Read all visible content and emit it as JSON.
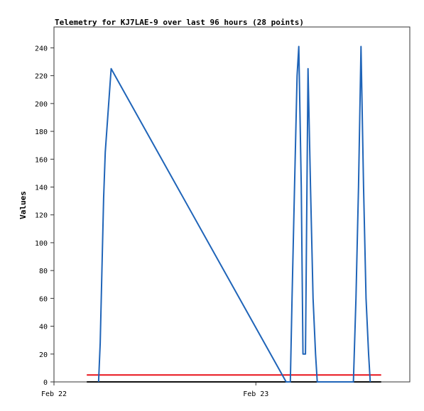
{
  "chart_data": {
    "type": "line",
    "title": "Telemetry for KJ7LAE-9 over last 96 hours (28 points)",
    "xlabel": "",
    "ylabel": "Values",
    "x_ticks": [
      "Feb 22",
      "Feb 23"
    ],
    "x_tick_hours": [
      0,
      24
    ],
    "xlim_hours": [
      0,
      42.3
    ],
    "ylim": [
      0,
      255
    ],
    "y_ticks": [
      0,
      20,
      40,
      60,
      80,
      100,
      120,
      140,
      160,
      180,
      200,
      220,
      240
    ],
    "grid": false,
    "legend": "none",
    "colors": {
      "series_blue": "#1f64b8",
      "series_red": "#e8131b",
      "series_black": "#111111",
      "frame": "#333333"
    },
    "series": [
      {
        "color": "#1f64b8",
        "points": [
          [
            5.3,
            0
          ],
          [
            5.5,
            28
          ],
          [
            5.7,
            80
          ],
          [
            5.9,
            132
          ],
          [
            6.1,
            165
          ],
          [
            6.8,
            225
          ],
          [
            27.6,
            0
          ],
          [
            28.1,
            0
          ],
          [
            28.3,
            60
          ],
          [
            28.6,
            140
          ],
          [
            28.9,
            220
          ],
          [
            29.1,
            241
          ],
          [
            29.4,
            140
          ],
          [
            29.6,
            20
          ],
          [
            29.9,
            20
          ],
          [
            30.2,
            225
          ],
          [
            30.5,
            140
          ],
          [
            30.8,
            60
          ],
          [
            31.1,
            20
          ],
          [
            31.3,
            0
          ],
          [
            35.6,
            0
          ],
          [
            35.9,
            60
          ],
          [
            36.2,
            140
          ],
          [
            36.5,
            241
          ],
          [
            36.8,
            140
          ],
          [
            37.1,
            60
          ],
          [
            37.4,
            20
          ],
          [
            37.6,
            0
          ]
        ]
      },
      {
        "color": "#e8131b",
        "points": [
          [
            3.9,
            5
          ],
          [
            38.9,
            5
          ]
        ]
      },
      {
        "color": "#111111",
        "points": [
          [
            3.9,
            0
          ],
          [
            38.9,
            0
          ]
        ]
      }
    ]
  }
}
